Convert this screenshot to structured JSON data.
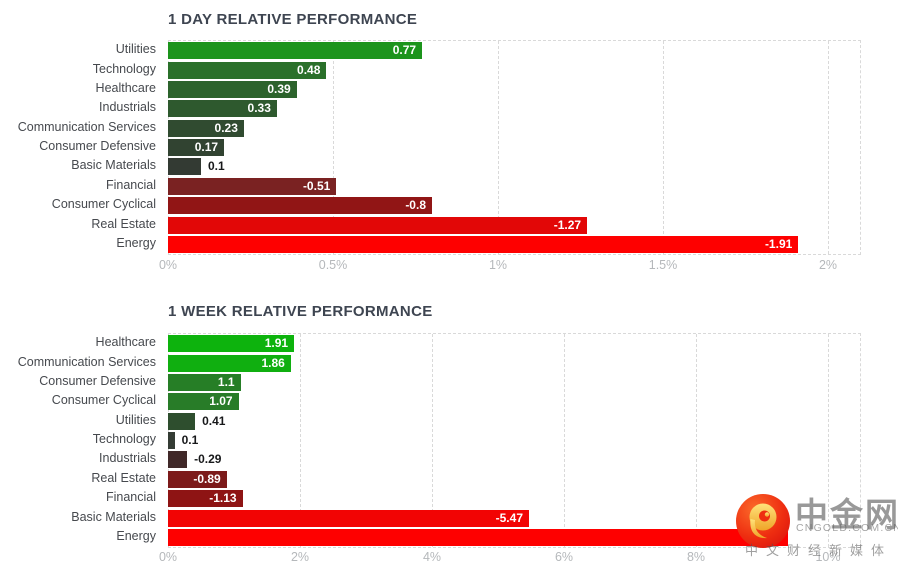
{
  "chart_data": [
    {
      "type": "bar",
      "orientation": "horizontal",
      "title": "1 DAY RELATIVE PERFORMANCE",
      "categories": [
        "Utilities",
        "Technology",
        "Healthcare",
        "Industrials",
        "Communication Services",
        "Consumer Defensive",
        "Basic Materials",
        "Financial",
        "Consumer Cyclical",
        "Real Estate",
        "Energy"
      ],
      "values": [
        0.77,
        0.48,
        0.39,
        0.33,
        0.23,
        0.17,
        0.1,
        -0.51,
        -0.8,
        -1.27,
        -1.91
      ],
      "value_labels": [
        "0.77",
        "0.48",
        "0.39",
        "0.33",
        "0.23",
        "0.17",
        "0.1",
        "-0.51",
        "-0.8",
        "-1.27",
        "-1.91"
      ],
      "bar_colors": [
        "#1c941c",
        "#2a702a",
        "#2c632c",
        "#2e592e",
        "#304b30",
        "#314331",
        "#333a33",
        "#7a2222",
        "#911515",
        "#e20707",
        "#fe0000"
      ],
      "x_ticks": [
        "0%",
        "0.5%",
        "1%",
        "1.5%",
        "2%"
      ],
      "x_tick_values": [
        0,
        0.5,
        1,
        1.5,
        2
      ],
      "xlim": [
        0,
        2.1
      ],
      "grid": "dashed vertical",
      "note": "bar length encodes absolute value in percent; green = positive, red = negative"
    },
    {
      "type": "bar",
      "orientation": "horizontal",
      "title": "1 WEEK RELATIVE PERFORMANCE",
      "categories": [
        "Healthcare",
        "Communication Services",
        "Consumer Defensive",
        "Consumer Cyclical",
        "Utilities",
        "Technology",
        "Industrials",
        "Real Estate",
        "Financial",
        "Basic Materials",
        "Energy"
      ],
      "values": [
        1.91,
        1.86,
        1.1,
        1.07,
        0.41,
        0.1,
        -0.29,
        -0.89,
        -1.13,
        -5.47,
        -9.4
      ],
      "value_labels": [
        "1.91",
        "1.86",
        "1.1",
        "1.07",
        "0.41",
        "0.1",
        "-0.29",
        "-0.89",
        "-1.13",
        "-5.47",
        ""
      ],
      "bar_colors": [
        "#0db30d",
        "#10af10",
        "#267e26",
        "#287c28",
        "#2e4e2e",
        "#343c34",
        "#402828",
        "#7c1a1a",
        "#8e1414",
        "#f20404",
        "#fe0000"
      ],
      "x_ticks": [
        "0%",
        "2%",
        "4%",
        "6%",
        "8%",
        "10%"
      ],
      "x_tick_values": [
        0,
        2,
        4,
        6,
        8,
        10
      ],
      "xlim": [
        0,
        10.5
      ],
      "grid": "dashed vertical",
      "note": "Energy bar value label is hidden behind the watermark logo; value estimated from bar length"
    }
  ],
  "watermark": {
    "brand": "中金网",
    "domain": "CNGOLD.COM.CN",
    "tagline": "中文财经新媒体",
    "logo_color": "#ee2d10",
    "swirl_color": "#f6c23c"
  },
  "colors": {
    "positive_max": "#0db30d",
    "negative_max": "#fe0000",
    "title": "#3e4551",
    "category_label": "#46494e",
    "axis_tick": "#b5b8bb",
    "gridline": "#d9d9d9",
    "background": "#ffffff"
  }
}
